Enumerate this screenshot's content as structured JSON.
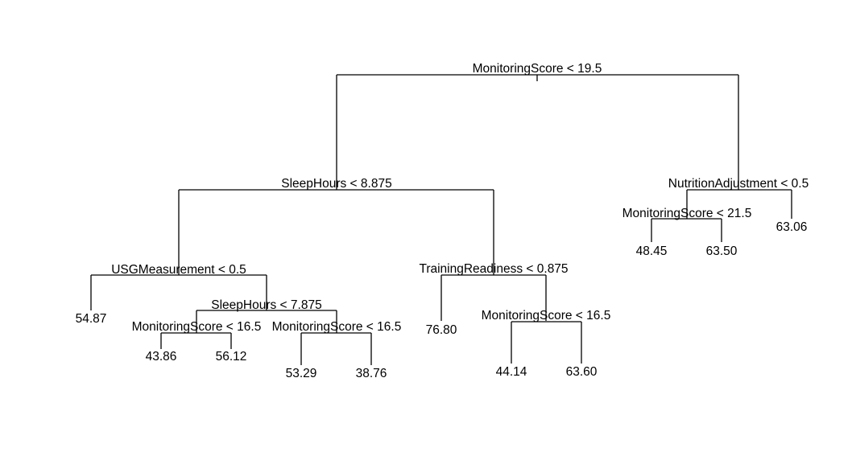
{
  "colors": {
    "background": "#ffffff",
    "ink": "#000000"
  },
  "tree": {
    "split_labels": {
      "root": "MonitoringScore < 19.5",
      "l": "SleepHours < 8.875",
      "r": "NutritionAdjustment < 0.5",
      "ll": "USGMeasurement < 0.5",
      "lr": "TrainingReadiness < 0.875",
      "rl": "MonitoringScore < 21.5",
      "llr": "SleepHours < 7.875",
      "llrl": "MonitoringScore < 16.5",
      "llrr": "MonitoringScore < 16.5",
      "lrr": "MonitoringScore < 16.5"
    },
    "leaf_values": {
      "lll": "54.87",
      "llrll": "43.86",
      "llrlr": "56.12",
      "llrrl": "53.29",
      "llrrr": "38.76",
      "lrl": "76.80",
      "lrrl": "44.14",
      "lrrr": "63.60",
      "rll": "48.45",
      "rlr": "63.50",
      "rr": "63.06"
    }
  }
}
